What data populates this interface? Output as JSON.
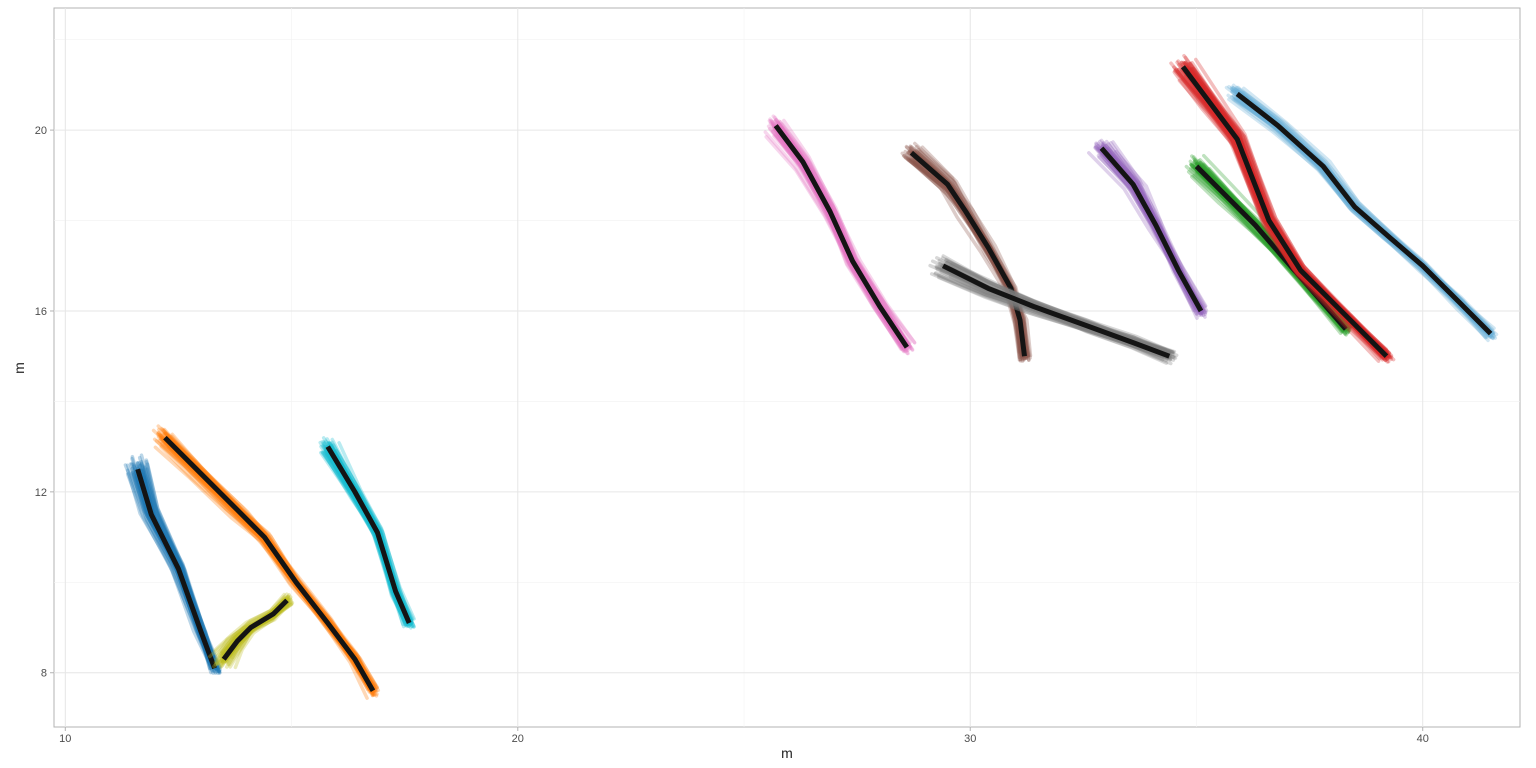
{
  "chart_data": {
    "type": "line",
    "xlabel": "m",
    "ylabel": "m",
    "xlim": [
      9.75,
      42.15
    ],
    "ylim": [
      6.8,
      22.7
    ],
    "x_ticks": [
      10,
      20,
      30,
      40
    ],
    "y_ticks": [
      8,
      12,
      16,
      20
    ],
    "grid": true,
    "legend": "none",
    "series": [
      {
        "color": "#1f77b4",
        "points": [
          [
            11.6,
            12.5
          ],
          [
            11.9,
            11.5
          ],
          [
            12.5,
            10.3
          ],
          [
            13.0,
            8.9
          ],
          [
            13.3,
            8.1
          ]
        ]
      },
      {
        "color": "#ff7f0e",
        "points": [
          [
            12.2,
            13.2
          ],
          [
            12.9,
            12.5
          ],
          [
            13.8,
            11.6
          ],
          [
            14.4,
            11.0
          ],
          [
            15.1,
            10.0
          ],
          [
            15.8,
            9.1
          ],
          [
            16.4,
            8.3
          ],
          [
            16.8,
            7.6
          ]
        ]
      },
      {
        "color": "#bcbd22",
        "points": [
          [
            13.5,
            8.3
          ],
          [
            13.8,
            8.7
          ],
          [
            14.1,
            9.0
          ],
          [
            14.6,
            9.3
          ],
          [
            14.9,
            9.6
          ]
        ]
      },
      {
        "color": "#17becf",
        "points": [
          [
            15.8,
            13.0
          ],
          [
            16.4,
            12.0
          ],
          [
            16.9,
            11.1
          ],
          [
            17.3,
            9.8
          ],
          [
            17.6,
            9.1
          ]
        ]
      },
      {
        "color": "#e377c2",
        "points": [
          [
            25.7,
            20.1
          ],
          [
            26.3,
            19.3
          ],
          [
            26.9,
            18.2
          ],
          [
            27.4,
            17.1
          ],
          [
            28.0,
            16.1
          ],
          [
            28.6,
            15.2
          ]
        ]
      },
      {
        "color": "#8c564b",
        "points": [
          [
            28.7,
            19.5
          ],
          [
            29.5,
            18.8
          ],
          [
            29.9,
            18.2
          ],
          [
            30.4,
            17.4
          ],
          [
            30.9,
            16.5
          ],
          [
            31.1,
            15.8
          ],
          [
            31.2,
            15.0
          ]
        ]
      },
      {
        "color": "#7f7f7f",
        "points": [
          [
            29.4,
            17.0
          ],
          [
            30.4,
            16.5
          ],
          [
            31.4,
            16.1
          ],
          [
            32.5,
            15.7
          ],
          [
            33.6,
            15.3
          ],
          [
            34.4,
            15.0
          ]
        ]
      },
      {
        "color": "#9467bd",
        "points": [
          [
            32.9,
            19.6
          ],
          [
            33.6,
            18.8
          ],
          [
            34.1,
            17.9
          ],
          [
            34.6,
            16.9
          ],
          [
            35.1,
            16.0
          ]
        ]
      },
      {
        "color": "#2ca02c",
        "points": [
          [
            35.0,
            19.2
          ],
          [
            35.6,
            18.6
          ],
          [
            36.3,
            17.9
          ],
          [
            36.9,
            17.2
          ],
          [
            37.6,
            16.4
          ],
          [
            38.3,
            15.6
          ]
        ]
      },
      {
        "color": "#d62728",
        "points": [
          [
            34.7,
            21.4
          ],
          [
            35.3,
            20.6
          ],
          [
            35.9,
            19.8
          ],
          [
            36.6,
            18.0
          ],
          [
            37.3,
            16.9
          ],
          [
            38.4,
            15.8
          ],
          [
            39.2,
            15.0
          ]
        ]
      },
      {
        "color": "#6baed6",
        "points": [
          [
            35.9,
            20.8
          ],
          [
            36.8,
            20.1
          ],
          [
            37.8,
            19.2
          ],
          [
            38.5,
            18.3
          ],
          [
            39.3,
            17.6
          ],
          [
            40.0,
            17.0
          ],
          [
            40.8,
            16.2
          ],
          [
            41.5,
            15.5
          ]
        ]
      }
    ]
  }
}
